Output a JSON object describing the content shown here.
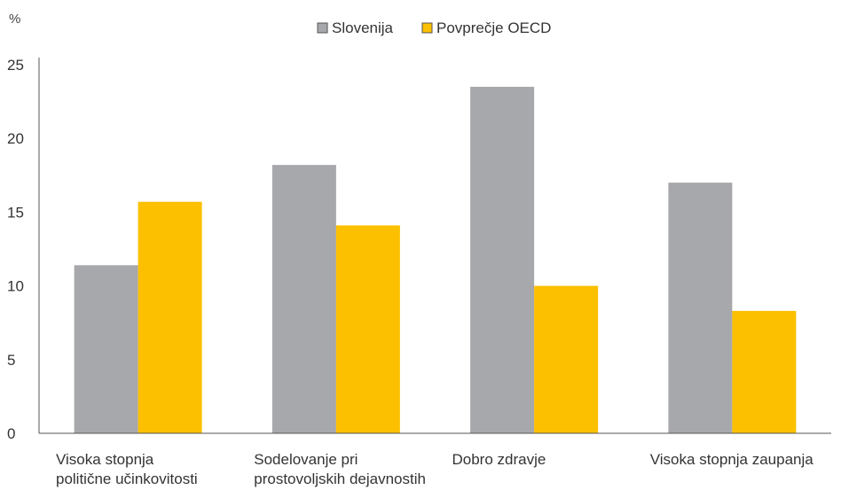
{
  "chart_data": {
    "type": "bar",
    "unit_label": "%",
    "categories": [
      [
        "Visoka stopnja",
        "politične učinkovitosti"
      ],
      [
        "Sodelovanje pri",
        "prostovoljskih dejavnostih"
      ],
      [
        "Dobro zdravje"
      ],
      [
        "Visoka stopnja zaupanja"
      ]
    ],
    "series": [
      {
        "name": "Slovenija",
        "color": "#a7a8ab",
        "values": [
          11.4,
          18.2,
          23.5,
          17.0
        ]
      },
      {
        "name": "Povprečje OECD",
        "color": "#fcc000",
        "values": [
          15.7,
          14.1,
          10.0,
          8.3
        ]
      }
    ],
    "ylim": [
      0,
      25
    ],
    "yticks": [
      0,
      5,
      10,
      15,
      20,
      25
    ],
    "legend_position": "top-center",
    "grid": false
  }
}
